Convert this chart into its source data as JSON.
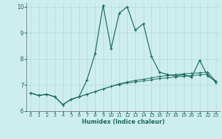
{
  "xlabel": "Humidex (Indice chaleur)",
  "xlim": [
    -0.5,
    23.5
  ],
  "ylim": [
    6,
    10.15
  ],
  "yticks": [
    6,
    7,
    8,
    9,
    10
  ],
  "xticks": [
    0,
    1,
    2,
    3,
    4,
    5,
    6,
    7,
    8,
    9,
    10,
    11,
    12,
    13,
    14,
    15,
    16,
    17,
    18,
    19,
    20,
    21,
    22,
    23
  ],
  "background_color": "#ceeeed",
  "grid_color": "#aed8d5",
  "line_color": "#1a6b5a",
  "line1_x": [
    0,
    1,
    2,
    3,
    4,
    5,
    6,
    7,
    8,
    9,
    10,
    11,
    12,
    13,
    14,
    15,
    16,
    17,
    18,
    19,
    20,
    21,
    22,
    23
  ],
  "line1_y": [
    6.7,
    6.6,
    6.65,
    6.55,
    6.25,
    6.45,
    6.55,
    7.2,
    8.2,
    10.05,
    8.4,
    9.75,
    10.0,
    9.1,
    9.35,
    8.1,
    7.5,
    7.4,
    7.35,
    7.4,
    7.3,
    7.95,
    7.35,
    7.15
  ],
  "line2_x": [
    0,
    1,
    2,
    3,
    4,
    5,
    6,
    7,
    8,
    9,
    10,
    11,
    12,
    13,
    14,
    15,
    16,
    17,
    18,
    19,
    20,
    21,
    22,
    23
  ],
  "line2_y": [
    6.7,
    6.6,
    6.65,
    6.55,
    6.25,
    6.45,
    6.55,
    6.65,
    6.75,
    6.85,
    6.95,
    7.05,
    7.12,
    7.18,
    7.22,
    7.28,
    7.33,
    7.37,
    7.4,
    7.43,
    7.45,
    7.47,
    7.5,
    7.15
  ],
  "line3_x": [
    0,
    1,
    2,
    3,
    4,
    5,
    6,
    7,
    8,
    9,
    10,
    11,
    12,
    13,
    14,
    15,
    16,
    17,
    18,
    19,
    20,
    21,
    22,
    23
  ],
  "line3_y": [
    6.7,
    6.6,
    6.65,
    6.55,
    6.25,
    6.45,
    6.55,
    6.65,
    6.75,
    6.85,
    6.95,
    7.02,
    7.08,
    7.12,
    7.16,
    7.2,
    7.25,
    7.28,
    7.31,
    7.34,
    7.37,
    7.39,
    7.42,
    7.1
  ]
}
